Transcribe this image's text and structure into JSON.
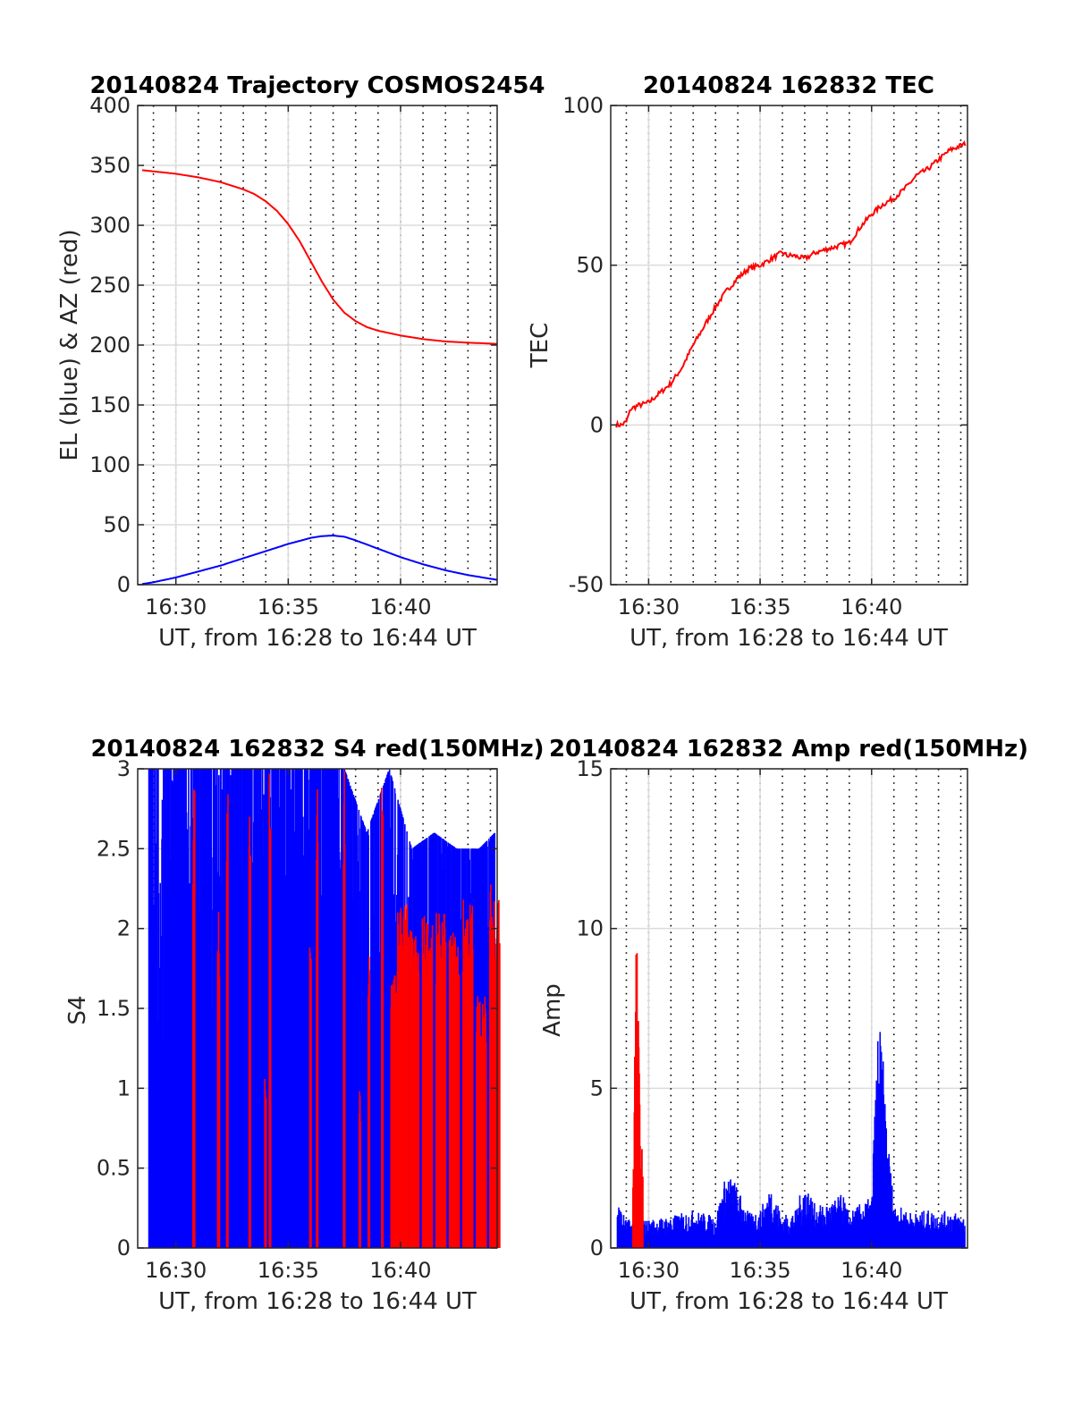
{
  "chart_data": [
    {
      "type": "line",
      "title": "20140824 Trajectory COSMOS2454",
      "xlabel": "UT, from 16:28 to 16:44 UT",
      "ylabel": "EL (blue) & AZ (red)",
      "xlim": [
        28.3,
        44.3
      ],
      "ylim": [
        0,
        400
      ],
      "yticks": [
        0,
        50,
        100,
        150,
        200,
        250,
        300,
        350,
        400
      ],
      "xticks": [
        {
          "x": 30,
          "label": "16:30"
        },
        {
          "x": 35,
          "label": "16:35"
        },
        {
          "x": 40,
          "label": "16:40"
        }
      ],
      "minor_x_gridlines": "every 1 minute, dotted",
      "grid": true,
      "series": [
        {
          "color": "#ff0000",
          "x": [
            28.5,
            29,
            30,
            31,
            32,
            33,
            33.5,
            34,
            34.5,
            35,
            35.5,
            36,
            36.5,
            37,
            37.5,
            38,
            38.5,
            39,
            40,
            41,
            42,
            43,
            44.3
          ],
          "y": [
            346,
            345,
            343,
            340,
            336,
            330,
            326,
            320,
            312,
            301,
            287,
            270,
            253,
            238,
            227,
            220,
            215,
            212,
            208,
            205,
            203,
            202,
            201
          ]
        },
        {
          "color": "#0000ff",
          "x": [
            28.5,
            29,
            30,
            31,
            32,
            33,
            34,
            35,
            36,
            36.5,
            37,
            37.5,
            38,
            39,
            40,
            41,
            42,
            43,
            44.3
          ],
          "y": [
            0.5,
            2,
            6,
            11,
            16,
            22,
            28,
            34,
            39,
            40.5,
            41,
            40,
            37,
            30,
            23,
            17,
            12,
            8,
            4
          ]
        }
      ]
    },
    {
      "type": "line",
      "title": "20140824 162832 TEC",
      "xlabel": "UT, from 16:28 to 16:44 UT",
      "ylabel": "TEC",
      "xlim": [
        28.3,
        44.3
      ],
      "ylim": [
        -50,
        100
      ],
      "yticks": [
        -50,
        0,
        50,
        100
      ],
      "xticks": [
        {
          "x": 30,
          "label": "16:30"
        },
        {
          "x": 35,
          "label": "16:35"
        },
        {
          "x": 40,
          "label": "16:40"
        }
      ],
      "grid": true,
      "series": [
        {
          "color": "#ff0000",
          "x": [
            28.55,
            28.8,
            29,
            29.2,
            29.5,
            30,
            30.5,
            31,
            31.5,
            32,
            32.5,
            33,
            33.5,
            34,
            34.5,
            35,
            35.5,
            36,
            36.2,
            36.5,
            37,
            37.5,
            38,
            38.5,
            39,
            39.5,
            40,
            40.5,
            41,
            41.5,
            42,
            42.5,
            43,
            43.5,
            44.2
          ],
          "y": [
            0,
            0,
            1,
            5,
            6,
            7,
            10,
            13,
            18,
            25,
            31,
            37,
            42,
            46,
            49,
            50,
            52,
            54,
            53,
            53,
            52,
            54,
            55,
            56,
            57,
            62,
            66,
            69,
            71,
            74,
            78,
            80,
            83,
            86,
            88
          ]
        }
      ]
    },
    {
      "type": "bar",
      "title": "20140824 162832 S4 red(150MHz)",
      "xlabel": "UT, from 16:28 to 16:44 UT",
      "ylabel": "S4",
      "xlim": [
        28.3,
        44.3
      ],
      "ylim": [
        0,
        3
      ],
      "yticks": [
        0,
        0.5,
        1,
        1.5,
        2,
        2.5,
        3
      ],
      "ytick_labels": [
        "0",
        "0.5",
        "1",
        "1.5",
        "2",
        "2.5",
        "3"
      ],
      "xticks": [
        {
          "x": 30,
          "label": "16:30"
        },
        {
          "x": 35,
          "label": "16:35"
        },
        {
          "x": 40,
          "label": "16:40"
        }
      ],
      "grid": true,
      "series": [
        {
          "color": "#0000ff",
          "description_range": [
            28.8,
            44.2
          ],
          "x": [
            28.8,
            29.5,
            30.5,
            31.5,
            32.5,
            33.5,
            34.5,
            35.5,
            36.5,
            37.5,
            38.5,
            39.5,
            40.5,
            41.5,
            42.5,
            43.5,
            44.2
          ],
          "y": [
            3,
            3,
            3,
            3,
            3,
            3,
            3,
            3,
            3,
            3,
            2.6,
            3,
            2.5,
            2.6,
            2.5,
            2.5,
            2.6
          ]
        },
        {
          "color": "#ff0000",
          "x": [
            30.8,
            31.9,
            32.3,
            33.3,
            34.0,
            34.2,
            36.0,
            36.3,
            37.5,
            38.2,
            38.6,
            39.2,
            39.8,
            40.1,
            40.6,
            41.2,
            41.8,
            42.4,
            43.0,
            43.6,
            44.2
          ],
          "y": [
            3,
            2.2,
            3,
            3,
            1.1,
            3,
            1.9,
            3,
            3,
            1.0,
            1.9,
            3,
            1.8,
            2.2,
            2.0,
            2.1,
            2.1,
            2.0,
            2.2,
            1.6,
            2.3
          ]
        }
      ]
    },
    {
      "type": "bar",
      "title": "20140824 162832 Amp red(150MHz)",
      "xlabel": "UT, from 16:28 to 16:44 UT",
      "ylabel": "Amp",
      "xlim": [
        28.3,
        44.3
      ],
      "ylim": [
        0,
        15
      ],
      "yticks": [
        0,
        5,
        10,
        15
      ],
      "xticks": [
        {
          "x": 30,
          "label": "16:30"
        },
        {
          "x": 35,
          "label": "16:35"
        },
        {
          "x": 40,
          "label": "16:40"
        }
      ],
      "grid": true,
      "series": [
        {
          "color": "#0000ff",
          "x": [
            28.6,
            29.0,
            30.0,
            31.0,
            32.0,
            33.0,
            33.5,
            33.8,
            34.5,
            35.0,
            35.5,
            36.0,
            36.6,
            37.0,
            37.5,
            38.0,
            38.7,
            39.0,
            39.5,
            40.0,
            40.3,
            40.5,
            40.7,
            41.0,
            41.5,
            42.0,
            42.5,
            43.0,
            43.5,
            44.2
          ],
          "y": [
            1.5,
            0.9,
            0.9,
            1.0,
            1.2,
            1.0,
            2.4,
            2.2,
            1.1,
            1.2,
            2.0,
            1.0,
            1.2,
            2.2,
            1.3,
            1.4,
            1.7,
            1.1,
            1.4,
            1.6,
            7.5,
            6.1,
            3.8,
            1.4,
            1.2,
            1.1,
            1.2,
            1.1,
            1.2,
            1.0
          ]
        },
        {
          "color": "#ff0000",
          "x": [
            29.3,
            29.45,
            29.55,
            29.65,
            29.75
          ],
          "y": [
            2.7,
            10.6,
            7.0,
            4.0,
            2.5
          ]
        }
      ]
    }
  ]
}
